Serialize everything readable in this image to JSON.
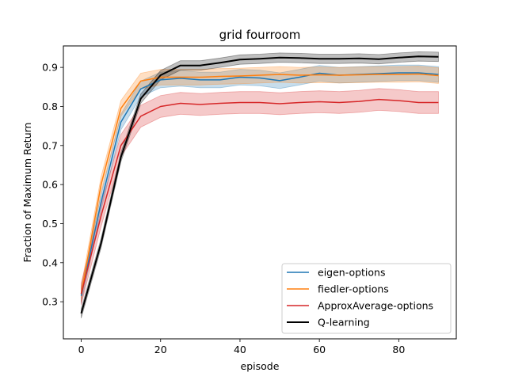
{
  "chart_data": {
    "type": "line",
    "title": "grid  fourroom",
    "xlabel": "episode",
    "ylabel": "Fraction of Maximum Return",
    "xlim": [
      -4.5,
      94.5
    ],
    "ylim": [
      0.205,
      0.955
    ],
    "xticks": [
      0,
      20,
      40,
      60,
      80
    ],
    "yticks": [
      0.3,
      0.4,
      0.5,
      0.6,
      0.7,
      0.8,
      0.9
    ],
    "legend_position": "lower right",
    "grid": false,
    "x": [
      0,
      5,
      10,
      15,
      20,
      25,
      30,
      35,
      40,
      45,
      50,
      55,
      60,
      65,
      70,
      75,
      80,
      85,
      90
    ],
    "series": [
      {
        "name": "eigen-options",
        "color": "#1f77b4",
        "values": [
          0.315,
          0.555,
          0.76,
          0.845,
          0.868,
          0.872,
          0.868,
          0.868,
          0.875,
          0.873,
          0.866,
          0.875,
          0.885,
          0.88,
          0.882,
          0.884,
          0.886,
          0.886,
          0.882
        ],
        "band": 0.02
      },
      {
        "name": "fiedler-options",
        "color": "#ff7f0e",
        "values": [
          0.32,
          0.6,
          0.795,
          0.865,
          0.875,
          0.875,
          0.875,
          0.877,
          0.878,
          0.88,
          0.882,
          0.88,
          0.881,
          0.88,
          0.881,
          0.882,
          0.882,
          0.883,
          0.879
        ],
        "band": 0.02
      },
      {
        "name": "ApproxAverage-options",
        "color": "#d62728",
        "values": [
          0.32,
          0.52,
          0.7,
          0.775,
          0.8,
          0.808,
          0.805,
          0.808,
          0.81,
          0.81,
          0.807,
          0.81,
          0.812,
          0.81,
          0.813,
          0.818,
          0.815,
          0.81,
          0.81
        ],
        "band": 0.028
      },
      {
        "name": "Q-learning",
        "color": "#000000",
        "values": [
          0.27,
          0.45,
          0.67,
          0.82,
          0.88,
          0.905,
          0.905,
          0.912,
          0.92,
          0.922,
          0.925,
          0.924,
          0.922,
          0.922,
          0.923,
          0.921,
          0.925,
          0.928,
          0.927
        ],
        "band": 0.012
      }
    ]
  }
}
